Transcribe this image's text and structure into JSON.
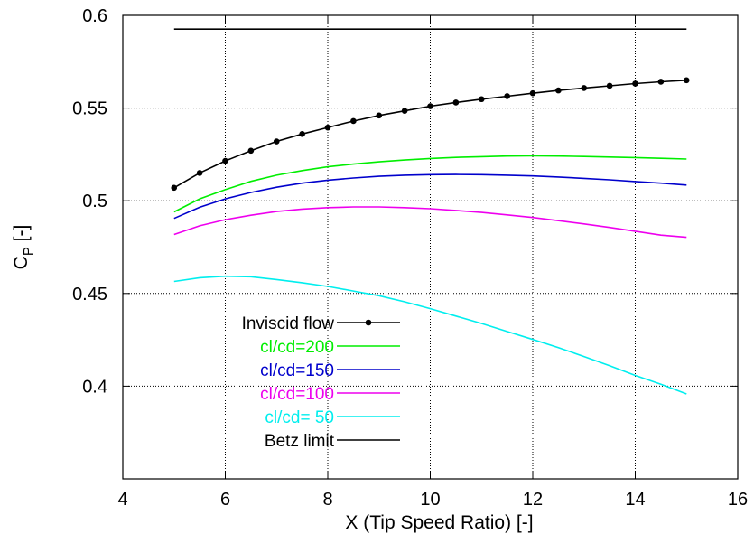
{
  "chart_data": {
    "type": "line",
    "xlabel": "X (Tip Speed Ratio) [-]",
    "ylabel_main": "C",
    "ylabel_sub": "P",
    "ylabel_unit": " [-]",
    "xlim": [
      4,
      16
    ],
    "ylim": [
      0.35,
      0.6
    ],
    "xticks": [
      4,
      6,
      8,
      10,
      12,
      14,
      16
    ],
    "xtick_labels": [
      "4",
      "6",
      "8",
      "10",
      "12",
      "14",
      "16"
    ],
    "yticks": [
      0.4,
      0.45,
      0.5,
      0.55,
      0.6
    ],
    "ytick_labels": [
      "0.4",
      "0.45",
      "0.5",
      "0.55",
      "0.6"
    ],
    "grid": true,
    "legend_position": "bottom-left",
    "series": [
      {
        "name": "Inviscid flow",
        "color": "#000000",
        "markers": true,
        "x": [
          5,
          5.5,
          6,
          6.5,
          7,
          7.5,
          8,
          8.5,
          9,
          9.5,
          10,
          10.5,
          11,
          11.5,
          12,
          12.5,
          13,
          13.5,
          14,
          14.5,
          15
        ],
        "y": [
          0.507,
          0.515,
          0.5215,
          0.527,
          0.532,
          0.536,
          0.5395,
          0.543,
          0.546,
          0.5485,
          0.551,
          0.553,
          0.5548,
          0.5564,
          0.558,
          0.5595,
          0.5608,
          0.562,
          0.5632,
          0.5642,
          0.565
        ]
      },
      {
        "name": "cl/cd=200",
        "color": "#00ee00",
        "markers": false,
        "x": [
          5,
          5.5,
          6,
          6.5,
          7,
          7.5,
          8,
          8.5,
          9,
          9.5,
          10,
          10.5,
          11,
          11.5,
          12,
          12.5,
          13,
          13.5,
          14,
          14.5,
          15
        ],
        "y": [
          0.494,
          0.501,
          0.506,
          0.5105,
          0.5138,
          0.5163,
          0.5183,
          0.5198,
          0.521,
          0.522,
          0.5228,
          0.5234,
          0.5238,
          0.5241,
          0.5242,
          0.5241,
          0.5239,
          0.5236,
          0.5233,
          0.5229,
          0.5225
        ]
      },
      {
        "name": "cl/cd=150",
        "color": "#0000cc",
        "markers": false,
        "x": [
          5,
          5.5,
          6,
          6.5,
          7,
          7.5,
          8,
          8.5,
          9,
          9.5,
          10,
          10.5,
          11,
          11.5,
          12,
          12.5,
          13,
          13.5,
          14,
          14.5,
          15
        ],
        "y": [
          0.4905,
          0.4965,
          0.501,
          0.5045,
          0.5073,
          0.5095,
          0.5111,
          0.5123,
          0.5132,
          0.5138,
          0.5141,
          0.5142,
          0.5141,
          0.5138,
          0.5134,
          0.5128,
          0.5121,
          0.5113,
          0.5104,
          0.5095,
          0.5085
        ]
      },
      {
        "name": "cl/cd=100",
        "color": "#ee00ee",
        "markers": false,
        "x": [
          5,
          5.5,
          6,
          6.5,
          7,
          7.5,
          8,
          8.5,
          9,
          9.5,
          10,
          10.5,
          11,
          11.5,
          12,
          12.5,
          13,
          13.5,
          14,
          14.5,
          15
        ],
        "y": [
          0.4818,
          0.4865,
          0.4898,
          0.4922,
          0.4942,
          0.4955,
          0.4963,
          0.4967,
          0.4967,
          0.4963,
          0.4957,
          0.4948,
          0.4937,
          0.4924,
          0.491,
          0.4893,
          0.4875,
          0.4856,
          0.4836,
          0.4815,
          0.4803
        ]
      },
      {
        "name": "cl/cd= 50",
        "color": "#00eeee",
        "markers": false,
        "x": [
          5,
          5.5,
          6,
          6.5,
          7,
          7.5,
          8,
          8.5,
          9,
          9.5,
          10,
          10.5,
          11,
          11.5,
          12,
          12.5,
          13,
          13.5,
          14,
          14.5,
          15
        ],
        "y": [
          0.4565,
          0.4585,
          0.4593,
          0.459,
          0.4575,
          0.4558,
          0.4538,
          0.4513,
          0.4488,
          0.4455,
          0.4418,
          0.4378,
          0.4338,
          0.4295,
          0.4252,
          0.4208,
          0.416,
          0.411,
          0.4058,
          0.401,
          0.3958
        ]
      },
      {
        "name": "Betz limit",
        "color": "#000000",
        "markers": false,
        "x": [
          5,
          15
        ],
        "y": [
          0.5926,
          0.5926
        ]
      }
    ]
  }
}
